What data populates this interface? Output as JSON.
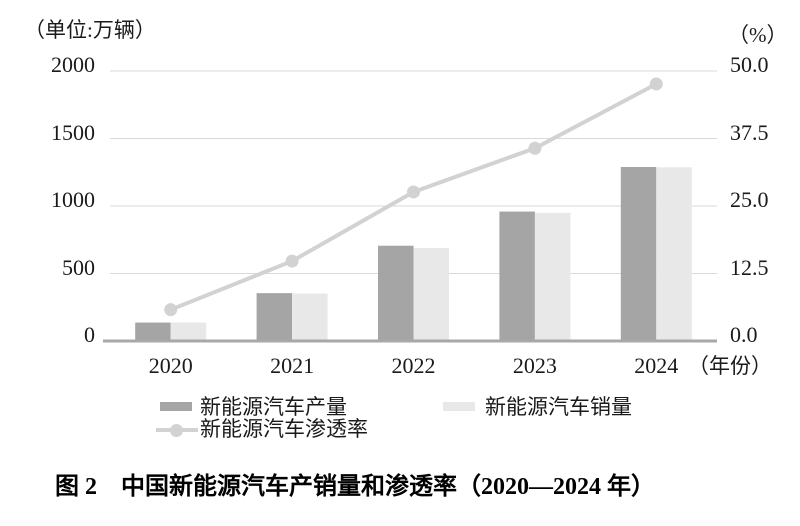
{
  "figure": {
    "caption": "图 2　中国新能源汽车产销量和渗透率（2020—2024 年）"
  },
  "chart_data": {
    "type": "combo-bar-line",
    "title": "中国新能源汽车产销量和渗透率（2020—2024 年）",
    "categories": [
      "2020",
      "2021",
      "2022",
      "2023",
      "2024"
    ],
    "series": [
      {
        "name": "新能源汽车产量",
        "type": "bar",
        "axis": "left",
        "color": "#a5a5a5",
        "values": [
          136.6,
          354.5,
          705.8,
          958.7,
          1288.8
        ]
      },
      {
        "name": "新能源汽车销量",
        "type": "bar",
        "axis": "left",
        "color": "#e8e8e8",
        "values": [
          136.7,
          352.1,
          688.7,
          949.5,
          1286.6
        ]
      },
      {
        "name": "新能源汽车渗透率",
        "type": "line",
        "axis": "right",
        "color": "#d2d2d2",
        "values": [
          5.8,
          14.8,
          27.6,
          35.7,
          47.6
        ]
      }
    ],
    "left_axis": {
      "unit": "（单位:万辆）",
      "min": 0,
      "max": 2000,
      "ticks": [
        0,
        500,
        1000,
        1500,
        2000
      ],
      "tick_labels": [
        "0",
        "500",
        "1000",
        "1500",
        "2000"
      ]
    },
    "right_axis": {
      "unit": "（%）",
      "min": 0,
      "max": 50,
      "ticks": [
        0,
        12.5,
        25,
        37.5,
        50
      ],
      "tick_labels": [
        "0.0",
        "12.5",
        "25.0",
        "37.5",
        "50.0"
      ]
    },
    "x_axis": {
      "label_suffix": "（年份）"
    },
    "grid": true,
    "legend_position": "bottom",
    "colors": {
      "grid": "#d9d9d9",
      "axis": "#a8a8a8",
      "text": "#1a1a1a"
    }
  }
}
